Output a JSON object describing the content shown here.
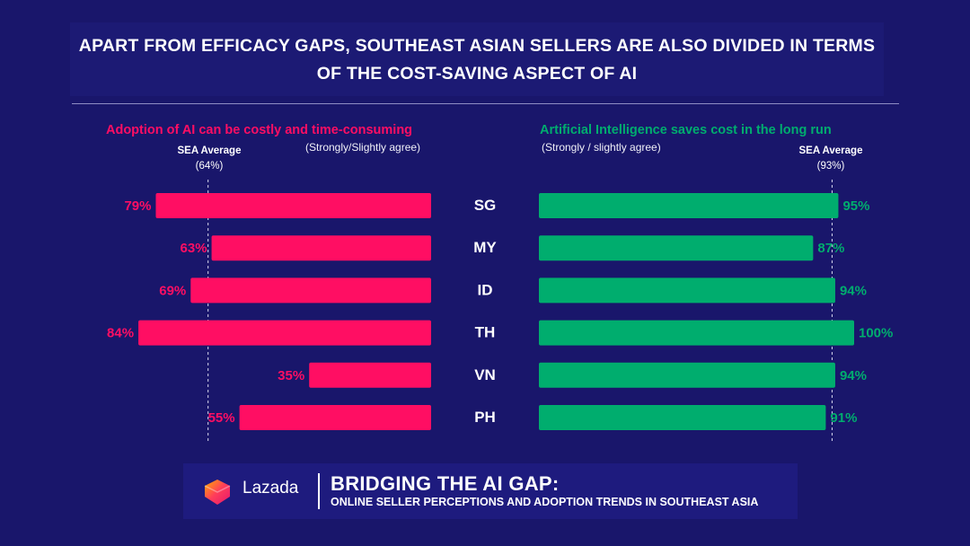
{
  "header": {
    "title_line1": "APART FROM EFFICACY GAPS, SOUTHEAST ASIAN SELLERS ARE ALSO DIVIDED IN TERMS",
    "title_line2": "OF THE COST-SAVING ASPECT OF AI"
  },
  "colors": {
    "background": "#19166b",
    "pink": "#ff0e63",
    "green": "#00ad6e"
  },
  "chart_data": [
    {
      "type": "bar",
      "orientation": "horizontal",
      "title": "Adoption of AI can be costly and time-consuming",
      "subtitle": "(Strongly/Slightly agree)",
      "categories": [
        "SG",
        "MY",
        "ID",
        "TH",
        "VN",
        "PH"
      ],
      "values": [
        79,
        63,
        69,
        84,
        35,
        55
      ],
      "value_labels": [
        "79%",
        "63%",
        "69%",
        "84%",
        "35%",
        "55%"
      ],
      "unit": "%",
      "average": {
        "label": "SEA Average",
        "value": 64,
        "value_label": "(64%)"
      },
      "color": "#ff0e63",
      "xlim": [
        0,
        84
      ]
    },
    {
      "type": "bar",
      "orientation": "horizontal",
      "title": "Artificial Intelligence saves cost in the long run",
      "subtitle": "(Strongly / slightly agree)",
      "categories": [
        "SG",
        "MY",
        "ID",
        "TH",
        "VN",
        "PH"
      ],
      "values": [
        95,
        87,
        94,
        100,
        94,
        91
      ],
      "value_labels": [
        "95%",
        "87%",
        "94%",
        "100%",
        "94%",
        "91%"
      ],
      "unit": "%",
      "average": {
        "label": "SEA Average",
        "value": 93,
        "value_label": "(93%)"
      },
      "color": "#00ad6e",
      "xlim": [
        0,
        100
      ]
    }
  ],
  "footer": {
    "brand": "Lazada",
    "logo_icon": "lazada-heart-logo",
    "report_title": "BRIDGING THE AI GAP:",
    "report_subtitle": "ONLINE SELLER PERCEPTIONS AND ADOPTION TRENDS IN SOUTHEAST ASIA"
  }
}
